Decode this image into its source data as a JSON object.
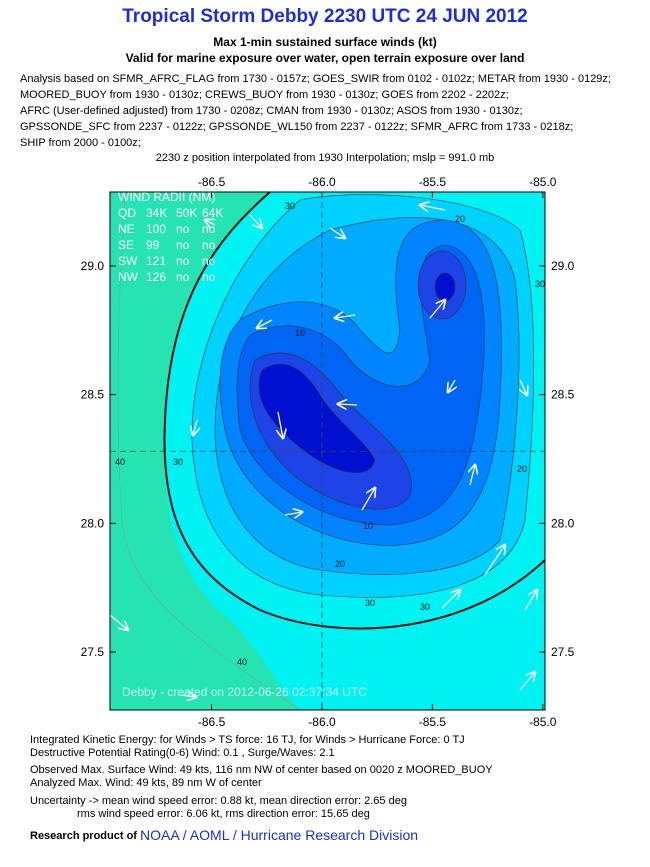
{
  "chart_data": {
    "type": "contour",
    "title": "Tropical Storm Debby 2230 UTC 24 JUN 2012",
    "subtitle": "Max 1-min sustained surface winds (kt)",
    "subtitle2": "Valid for marine exposure over water, open terrain exposure over land",
    "analysis_notes": [
      "Analysis based on SFMR_AFRC_FLAG from 1730 - 0157z; GOES_SWIR from 0102 - 0102z; METAR from 1930 - 0129z;",
      "MOORED_BUOY from 1930 - 0130z; CREWS_BUOY from 1930 - 0130z; GOES from 2202 - 2202z;",
      "AFRC (User-defined adjusted) from 1730 - 0208z; CMAN from 1930 - 0130z; ASOS from 1930 - 0130z;",
      "GPSSONDE_SFC from 2237 - 0122z; GPSSONDE_WL150 from 2237 - 0122z; SFMR_AFRC from 1733 - 0218z;",
      "SHIP from 2000 - 0100z;"
    ],
    "position_note": "2230 z position interpolated from 1930 Interpolation; mslp = 991.0 mb",
    "xlim": [
      -86.96,
      -84.99
    ],
    "ylim": [
      27.275,
      29.287
    ],
    "xticks": [
      -86.5,
      {
        "value": -86.0,
        "label": "-86.0"
      },
      -85.5,
      {
        "value": -85.0,
        "label": "-85.0"
      }
    ],
    "yticks": [
      27.5,
      {
        "value": 28.0,
        "label": "28.0"
      },
      28.5,
      {
        "value": 29.0,
        "label": "29.0"
      }
    ],
    "center": {
      "x": -86.0,
      "y": 28.28
    },
    "contour_labels": [
      30,
      20,
      10,
      30,
      40,
      10,
      20,
      30,
      30,
      20,
      30,
      40
    ],
    "wind_radii": {
      "title": "WIND RADII (NM)",
      "header": [
        "QD",
        "34K",
        "50K",
        "64K"
      ],
      "rows": [
        [
          "NE",
          "100",
          "no",
          "no"
        ],
        [
          "SE",
          "99",
          "no",
          "no"
        ],
        [
          "SW",
          "121",
          "no",
          "no"
        ],
        [
          "NW",
          "126",
          "no",
          "no"
        ]
      ]
    },
    "credit": "Debby - created on 2012-06-26 02:37:34 UTC",
    "footer_lines": [
      "Integrated Kinetic Energy: for Winds > TS force: 16 TJ, for Winds > Hurricane Force: 0 TJ",
      "Destructive Potential Rating(0-6)  Wind: 0.1 , Surge/Waves: 2.1",
      "Observed Max. Surface Wind: 49 kts, 116 nm NW of center based on 0020 z MOORED_BUOY",
      "Analyzed Max. Wind: 49 kts, 89 nm  W of center",
      "Uncertainty -> mean wind speed error: 0.88 kt, mean direction error: 2.65 deg",
      "rms wind speed error: 6.06 kt, rms direction error: 15.65 deg"
    ],
    "research_product_label": "Research product of",
    "research_product": "NOAA / AOML / Hurricane Research Division"
  }
}
